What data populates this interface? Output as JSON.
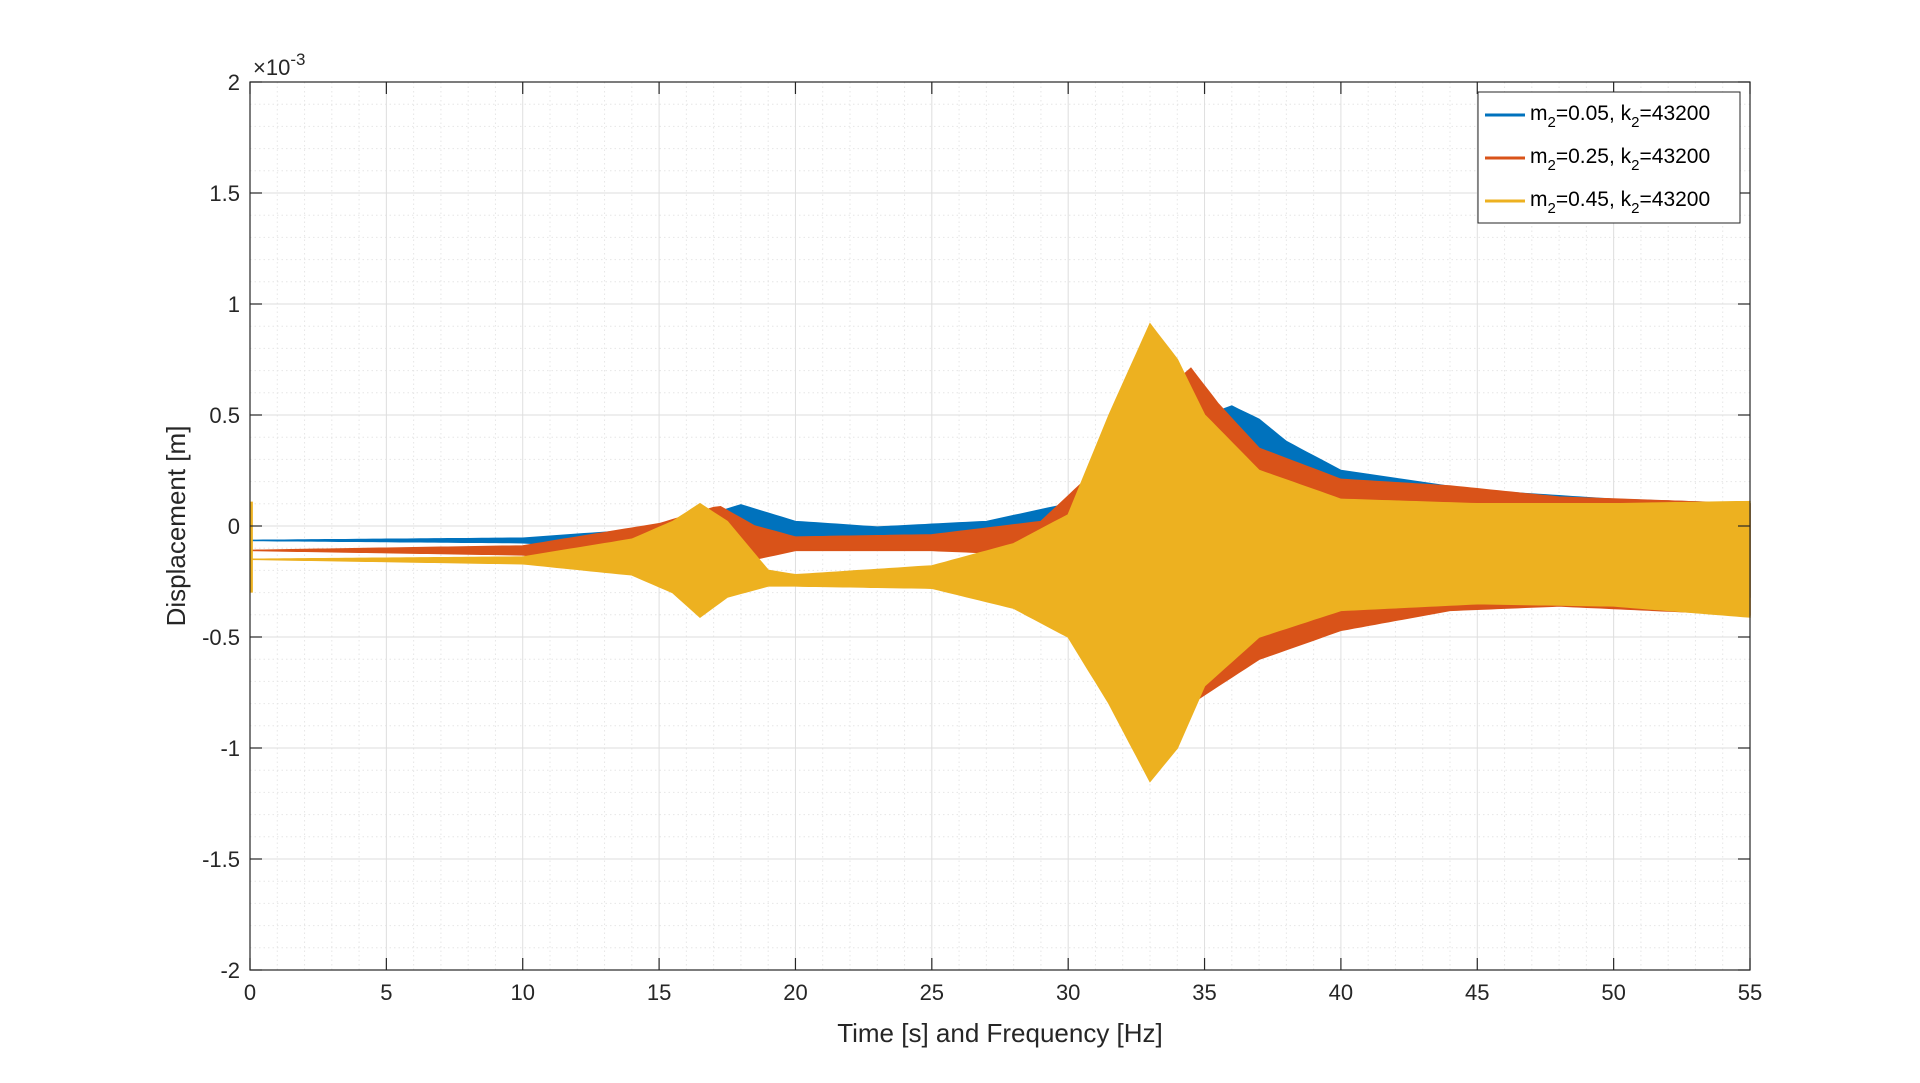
{
  "chart_data": {
    "type": "line",
    "xlabel": "Time [s] and Frequency [Hz]",
    "ylabel": "Displacement [m]",
    "y_exponent_label": "×10",
    "y_exponent": "-3",
    "xlim": [
      0,
      55
    ],
    "ylim": [
      -2,
      2
    ],
    "x_ticks": [
      0,
      5,
      10,
      15,
      20,
      25,
      30,
      35,
      40,
      45,
      50,
      55
    ],
    "y_ticks": [
      -2,
      -1.5,
      -1,
      -0.5,
      0,
      0.5,
      1,
      1.5,
      2
    ],
    "x_tick_labels": [
      "0",
      "5",
      "10",
      "15",
      "20",
      "25",
      "30",
      "35",
      "40",
      "45",
      "50",
      "55"
    ],
    "y_tick_labels": [
      "-2",
      "-1.5",
      "-1",
      "-0.5",
      "0",
      "0.5",
      "1",
      "1.5",
      "2"
    ],
    "grid": true,
    "minor_grid": true,
    "legend_position": "top-right",
    "series": [
      {
        "name": "m2=0.05, k2=43200",
        "legend": {
          "m": "m",
          "m_sub": "2",
          "m_val": "=0.05, ",
          "k": "k",
          "k_sub": "2",
          "k_val": "=43200"
        },
        "color": "#0072BD",
        "envelope": [
          [
            0,
            -0.065,
            -0.065
          ],
          [
            10,
            -0.055,
            -0.075
          ],
          [
            14,
            -0.02,
            -0.11
          ],
          [
            16,
            0.02,
            -0.15
          ],
          [
            18,
            0.095,
            -0.13
          ],
          [
            20,
            0.02,
            -0.085
          ],
          [
            23,
            -0.005,
            -0.075
          ],
          [
            27,
            0.02,
            -0.08
          ],
          [
            30,
            0.1,
            -0.12
          ],
          [
            32,
            0.35,
            -0.4
          ],
          [
            34,
            0.45,
            -0.55
          ],
          [
            36,
            0.54,
            -0.6
          ],
          [
            37,
            0.48,
            -0.5
          ],
          [
            38,
            0.38,
            -0.42
          ],
          [
            40,
            0.25,
            -0.37
          ],
          [
            45,
            0.16,
            -0.35
          ],
          [
            50,
            0.12,
            -0.33
          ],
          [
            55,
            0.1,
            -0.32
          ]
        ]
      },
      {
        "name": "m2=0.25, k2=43200",
        "legend": {
          "m": "m",
          "m_sub": "2",
          "m_val": "=0.25, ",
          "k": "k",
          "k_sub": "2",
          "k_val": "=43200"
        },
        "color": "#D95319",
        "envelope": [
          [
            0,
            -0.11,
            -0.11
          ],
          [
            10,
            -0.09,
            -0.13
          ],
          [
            15,
            0.01,
            -0.2
          ],
          [
            17.2,
            0.09,
            -0.2
          ],
          [
            18.5,
            0.0,
            -0.15
          ],
          [
            20,
            -0.05,
            -0.11
          ],
          [
            25,
            -0.04,
            -0.11
          ],
          [
            29,
            0.02,
            -0.13
          ],
          [
            31,
            0.25,
            -0.4
          ],
          [
            33,
            0.55,
            -0.7
          ],
          [
            34.5,
            0.71,
            -0.8
          ],
          [
            35.5,
            0.55,
            -0.72
          ],
          [
            37,
            0.35,
            -0.6
          ],
          [
            40,
            0.21,
            -0.47
          ],
          [
            44,
            0.18,
            -0.38
          ],
          [
            48,
            0.13,
            -0.36
          ],
          [
            55,
            0.1,
            -0.4
          ]
        ]
      },
      {
        "name": "m2=0.45, k2=43200",
        "legend": {
          "m": "m",
          "m_sub": "2",
          "m_val": "=0.45, ",
          "k": "k",
          "k_sub": "2",
          "k_val": "=43200"
        },
        "color": "#EDB120",
        "envelope": [
          [
            0,
            -0.15,
            -0.15
          ],
          [
            10,
            -0.14,
            -0.17
          ],
          [
            14,
            -0.06,
            -0.22
          ],
          [
            15.5,
            0.02,
            -0.3
          ],
          [
            16.5,
            0.1,
            -0.41
          ],
          [
            17.5,
            0.02,
            -0.32
          ],
          [
            19,
            -0.2,
            -0.27
          ],
          [
            20,
            -0.22,
            -0.27
          ],
          [
            25,
            -0.18,
            -0.28
          ],
          [
            28,
            -0.08,
            -0.37
          ],
          [
            30,
            0.05,
            -0.5
          ],
          [
            31.5,
            0.5,
            -0.8
          ],
          [
            33,
            0.91,
            -1.15
          ],
          [
            34,
            0.75,
            -1.0
          ],
          [
            35,
            0.5,
            -0.72
          ],
          [
            37,
            0.25,
            -0.5
          ],
          [
            40,
            0.12,
            -0.38
          ],
          [
            45,
            0.1,
            -0.35
          ],
          [
            50,
            0.1,
            -0.36
          ],
          [
            55,
            0.11,
            -0.41
          ]
        ]
      }
    ]
  }
}
